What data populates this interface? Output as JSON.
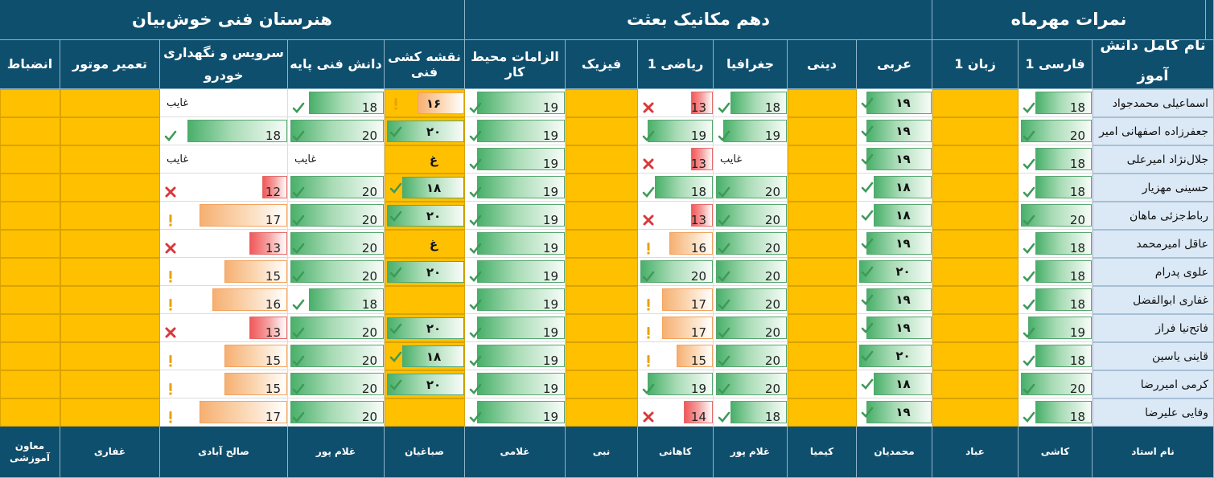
{
  "headers": {
    "school": "هنرستان فنی خوش‌بیان",
    "class": "دهم مکانیک بعثت",
    "exam": "نمرات مهرماه",
    "student_name": "نام کامل دانش آموز"
  },
  "columns": [
    "فارسی 1",
    "زبان 1",
    "عربی",
    "دینی",
    "جغرافیا",
    "ریاضی 1",
    "فیزیک",
    "الزامات محیط کار",
    "نقشه کشی فنی",
    "دانش فنی پایه",
    "سرویس و نگهداری خودرو",
    "تعمیر موتور",
    "انضباط"
  ],
  "teacher_label": "نام استاد",
  "teachers": [
    "کاشی",
    "عباد",
    "محمدیان",
    "کیمیا",
    "غلام پور",
    "کاهانی",
    "نبی",
    "غلامی",
    "صباغیان",
    "غلام پور",
    "صالح آبادی",
    "غفاری",
    "معاون آموزشی"
  ],
  "absent_text": "غایب",
  "students": [
    {
      "name": "اسماعیلی محمدجواد",
      "scores": [
        "18",
        "",
        "۱۹",
        "",
        "18",
        "13",
        "",
        "19",
        "۱۶",
        "18",
        "غایب",
        "",
        ""
      ]
    },
    {
      "name": "جعفرزاده اصفهانی امیر",
      "scores": [
        "20",
        "",
        "۱۹",
        "",
        "19",
        "19",
        "",
        "19",
        "۲۰",
        "20",
        "18",
        "",
        ""
      ]
    },
    {
      "name": "جلال‌نژاد امیرعلی",
      "scores": [
        "18",
        "",
        "۱۹",
        "",
        "غایب",
        "13",
        "",
        "19",
        "غ",
        "غایب",
        "غایب",
        "",
        ""
      ]
    },
    {
      "name": "حسینی مهزیار",
      "scores": [
        "18",
        "",
        "۱۸",
        "",
        "20",
        "18",
        "",
        "19",
        "۱۸",
        "20",
        "12",
        "",
        ""
      ]
    },
    {
      "name": "رباط‌جزئی ماهان",
      "scores": [
        "20",
        "",
        "۱۸",
        "",
        "20",
        "13",
        "",
        "19",
        "۲۰",
        "20",
        "17",
        "",
        ""
      ]
    },
    {
      "name": "عاقل امیرمحمد",
      "scores": [
        "18",
        "",
        "۱۹",
        "",
        "20",
        "16",
        "",
        "19",
        "غ",
        "20",
        "13",
        "",
        ""
      ]
    },
    {
      "name": "علوی پدرام",
      "scores": [
        "18",
        "",
        "۲۰",
        "",
        "20",
        "20",
        "",
        "19",
        "۲۰",
        "20",
        "15",
        "",
        ""
      ]
    },
    {
      "name": "غفاری ابوالفضل",
      "scores": [
        "18",
        "",
        "۱۹",
        "",
        "20",
        "17",
        "",
        "19",
        "",
        "18",
        "16",
        "",
        ""
      ]
    },
    {
      "name": "فاتح‌نیا فراز",
      "scores": [
        "19",
        "",
        "۱۹",
        "",
        "20",
        "17",
        "",
        "19",
        "۲۰",
        "20",
        "13",
        "",
        ""
      ]
    },
    {
      "name": "قاینی یاسین",
      "scores": [
        "18",
        "",
        "۲۰",
        "",
        "20",
        "15",
        "",
        "19",
        "۱۸",
        "20",
        "15",
        "",
        ""
      ]
    },
    {
      "name": "کرمی امیررضا",
      "scores": [
        "20",
        "",
        "۱۸",
        "",
        "20",
        "19",
        "",
        "19",
        "۲۰",
        "20",
        "15",
        "",
        ""
      ]
    },
    {
      "name": "وفایی علیرضا",
      "scores": [
        "18",
        "",
        "۱۹",
        "",
        "18",
        "14",
        "",
        "19",
        "",
        "20",
        "17",
        "",
        ""
      ]
    }
  ],
  "colors": {
    "header": "#0f4f6e",
    "empty_cell": "#ffc000",
    "name_cell": "#dbe9f6",
    "green_bar": "#49b06a",
    "red_bar": "#f0595a",
    "orange_bar": "#f6b072"
  },
  "icons": {
    "high": "check-icon",
    "mid": "exclamation-icon",
    "low": "x-icon"
  }
}
